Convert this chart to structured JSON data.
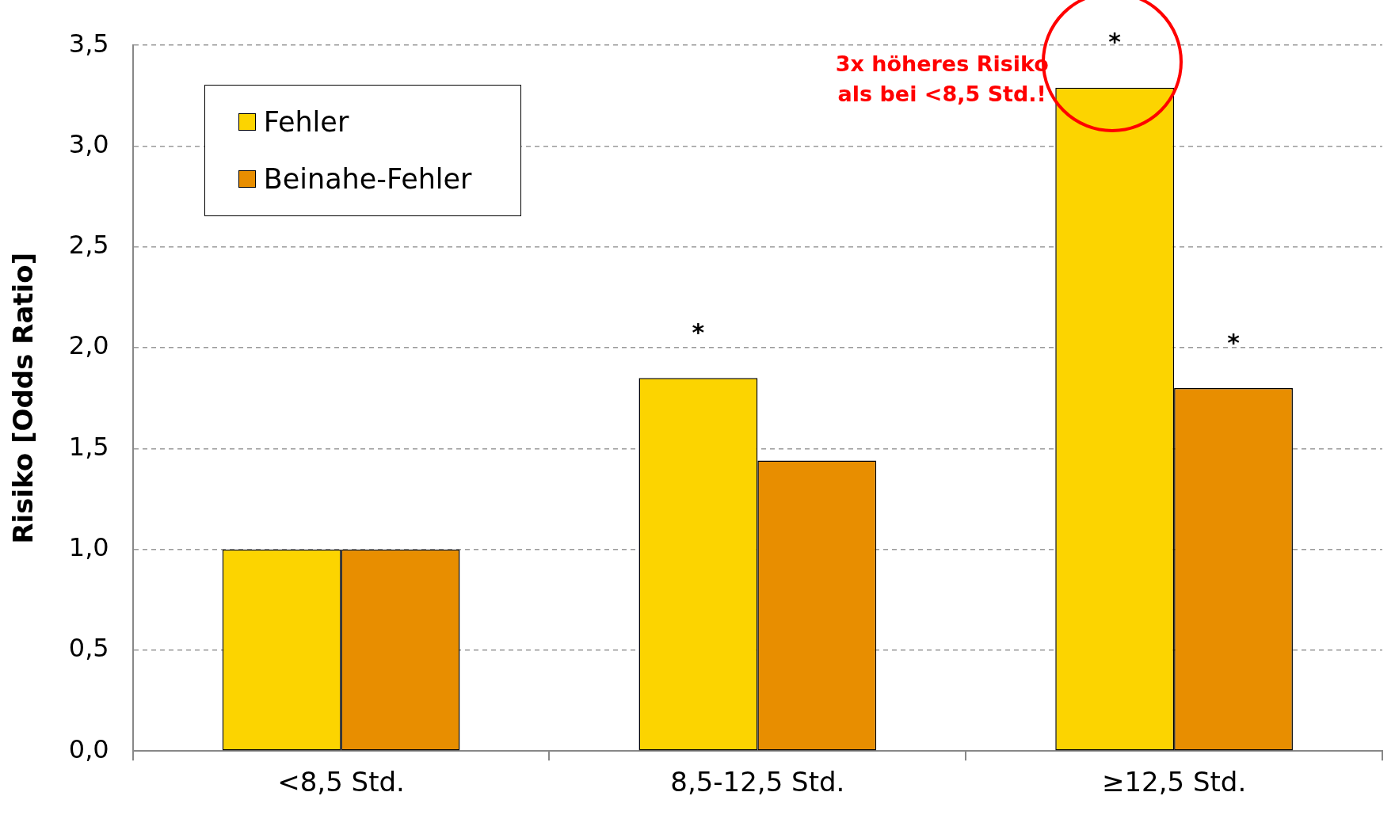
{
  "chart_data": {
    "type": "bar",
    "ylabel": "Risiko [Odds Ratio]",
    "categories": [
      "<8,5 Std.",
      "8,5-12,5 Std.",
      "≥12,5 Std."
    ],
    "series": [
      {
        "name": "Fehler",
        "color": "#fcd400",
        "values": [
          1.0,
          1.85,
          3.29
        ]
      },
      {
        "name": "Beinahe-Fehler",
        "color": "#e88e00",
        "values": [
          1.0,
          1.44,
          1.8
        ]
      }
    ],
    "ylim": [
      0,
      3.5
    ],
    "yticks": [
      {
        "value": 0,
        "label": "0,0"
      },
      {
        "value": 0.5,
        "label": "0,5"
      },
      {
        "value": 1,
        "label": "1,0"
      },
      {
        "value": 1.5,
        "label": "1,5"
      },
      {
        "value": 2,
        "label": "2,0"
      },
      {
        "value": 2.5,
        "label": "2,5"
      },
      {
        "value": 3,
        "label": "3,0"
      },
      {
        "value": 3.5,
        "label": "3,5"
      }
    ],
    "grid": "y",
    "legend": "top left",
    "annotations": [
      {
        "text": "*",
        "x": "8,5-12,5 Std.",
        "y": 1.85
      },
      {
        "text": "*",
        "x": "≥12,5 Std.",
        "y": 3.29
      },
      {
        "text": "*",
        "x": "≥12,5 Std.",
        "y": 1.8
      },
      "3x höheres Risiko\nals bei <8,5 Std.!"
    ]
  }
}
